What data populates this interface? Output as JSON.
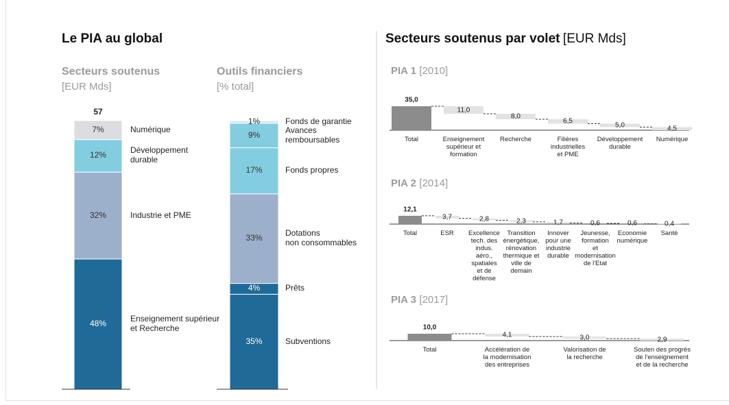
{
  "left_title": "Le PIA au global",
  "right_title": "Secteurs soutenus par volet",
  "right_unit": "[EUR Mds]",
  "chart_data": [
    {
      "type": "stacked_bar",
      "title": "Secteurs soutenus",
      "subtitle": "[EUR Mds]",
      "total": 57,
      "categories": [
        "Enseignement supérieur\net Recherche",
        "Industrie et PME",
        "Développement\ndurable",
        "Numérique"
      ],
      "values": [
        48,
        32,
        12,
        7
      ],
      "value_labels": [
        "48%",
        "32%",
        "12%",
        "7%"
      ],
      "colors": [
        "#1f6a97",
        "#9cafcb",
        "#83cde0",
        "#dcdde1"
      ]
    },
    {
      "type": "stacked_bar",
      "title": "Outils financiers",
      "subtitle": "[% total]",
      "categories": [
        "Subventions",
        "Prêts",
        "Dotations\nnon consommables",
        "Fonds propres",
        "Avances\nremboursables",
        "Fonds de garantie"
      ],
      "values": [
        35,
        4,
        33,
        17,
        9,
        1
      ],
      "value_labels": [
        "35%",
        "4%",
        "33%",
        "17%",
        "9%",
        "1%"
      ],
      "colors": [
        "#1f6a97",
        "#1f6a97",
        "#9cafcb",
        "#83cde0",
        "#83cde0",
        "#d3ebf1"
      ]
    },
    {
      "type": "waterfall",
      "title": "PIA 1",
      "subtitle": "[2010]",
      "categories": [
        "Total",
        "Enseignement\nsupérieur et\nformation",
        "Recherche",
        "Filières\nindustrielles\net PME",
        "Développement\ndurable",
        "Numérique"
      ],
      "values": [
        35,
        11,
        8,
        6.5,
        5,
        4.5
      ],
      "value_labels": [
        "35,0",
        "11,0",
        "8,0",
        "6,5",
        "5,0",
        "4,5"
      ],
      "colors": [
        "#8c8c8c",
        "#e2e2e2"
      ]
    },
    {
      "type": "waterfall",
      "title": "PIA 2",
      "subtitle": "[2014]",
      "categories": [
        "Total",
        "ESR",
        "Excellence\ntech. des\nindus.\naéro.,\nspatiales\net de\ndéfense",
        "Transition\nénergétique,\nrénovation\nthermique et\nville de\ndemain",
        "Innover\npour une\nindustrie\ndurable",
        "Jeunesse,\nformation\net\nmodernisation\nde l'Etat",
        "Economie\nnumérique",
        "Santé"
      ],
      "values": [
        12.1,
        3.7,
        2.8,
        2.3,
        1.7,
        0.6,
        0.6,
        0.4
      ],
      "value_labels": [
        "12,1",
        "3,7",
        "2,8",
        "2,3",
        "1,7",
        "0,6",
        "0,6",
        "0,4"
      ],
      "colors": [
        "#8c8c8c",
        "#e2e2e2"
      ]
    },
    {
      "type": "waterfall",
      "title": "PIA 3",
      "subtitle": "[2017]",
      "categories": [
        "Total",
        "Accélération de\nla modernisation\ndes entreprises",
        "Valorisation de\nla recherche",
        "Souten des progrès\nde l'enseignement\net de la recherche"
      ],
      "values": [
        10,
        4.1,
        3,
        2.9
      ],
      "value_labels": [
        "10,0",
        "4,1",
        "3,0",
        "2,9"
      ],
      "colors": [
        "#8c8c8c",
        "#e2e2e2"
      ]
    }
  ]
}
